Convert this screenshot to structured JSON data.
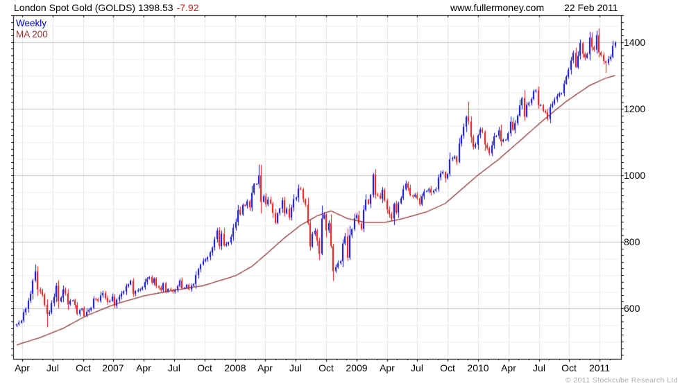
{
  "header": {
    "title": "London Spot Gold (GOLDS) 1398.53",
    "change": "-7.92",
    "website": "www.fullermoney.com",
    "date": "22 Feb 2011"
  },
  "legend": {
    "weekly": "Weekly",
    "ma": "MA 200"
  },
  "footer": {
    "copyright": "© 2011 Stockcube Research Ltd"
  },
  "colors": {
    "up": "#0a0ad8",
    "down": "#ee1111",
    "ma": "#8e3434",
    "change": "#bb2222",
    "legend_weekly": "#0000cc",
    "grid_minor": "#efefef",
    "grid_major": "#c0c0c0",
    "grid_vert": "#e2e2e2",
    "axis": "#000000",
    "copyright": "#aaaaaa"
  },
  "chart_data": {
    "type": "candlestick",
    "title": "London Spot Gold (GOLDS)",
    "frequency": "Weekly",
    "overlay": "MA 200",
    "last_price": 1398.53,
    "change": -7.92,
    "as_of": "22 Feb 2011",
    "x_axis": {
      "start": "2006-03-17",
      "end": "2011-02-22",
      "labels": [
        "Apr",
        "Jul",
        "Oct",
        "2007",
        "Apr",
        "Jul",
        "Oct",
        "2008",
        "Apr",
        "Jul",
        "Oct",
        "2009",
        "Apr",
        "Jul",
        "Oct",
        "2010",
        "Apr",
        "Jul",
        "Oct",
        "2011"
      ],
      "label_weeks": [
        2.4,
        15.45,
        28.5,
        41.55,
        54.6,
        67.65,
        80.7,
        93.75,
        106.8,
        119.85,
        132.9,
        145.95,
        159.0,
        172.05,
        185.1,
        198.15,
        211.2,
        224.25,
        237.3,
        250.35
      ],
      "weeks_total": 258
    },
    "y_axis": {
      "min": 448,
      "max": 1481,
      "tick_labels": [
        600,
        800,
        1000,
        1200,
        1400
      ],
      "grid_step": 50,
      "minor_tick_step": 20
    },
    "weekly_closes": [
      552,
      557,
      563,
      588,
      599,
      623,
      644,
      684,
      711,
      657,
      651,
      641,
      611,
      583,
      588,
      616,
      634,
      668,
      621,
      632,
      657,
      645,
      612,
      623,
      624,
      610,
      583,
      595,
      599,
      577,
      590,
      595,
      601,
      629,
      627,
      622,
      639,
      646,
      631,
      619,
      622,
      635,
      608,
      626,
      635,
      645,
      651,
      667,
      672,
      683,
      644,
      652,
      655,
      657,
      663,
      679,
      689,
      694,
      677,
      690,
      667,
      662,
      655,
      676,
      650,
      658,
      655,
      650,
      655,
      667,
      684,
      660,
      662,
      671,
      657,
      668,
      673,
      700,
      718,
      732,
      743,
      747,
      754,
      768,
      783,
      808,
      834,
      787,
      824,
      789,
      794,
      798,
      815,
      842,
      860,
      896,
      882,
      911,
      909,
      922,
      903,
      947,
      974,
      974,
      999,
      920,
      937,
      913,
      927,
      915,
      887,
      857,
      886,
      900,
      925,
      886,
      899,
      873,
      903,
      928,
      933,
      960,
      958,
      928,
      912,
      856,
      786,
      824,
      833,
      803,
      764,
      870,
      882,
      834,
      856,
      787,
      712,
      724,
      736,
      742,
      795,
      816,
      752,
      820,
      838,
      871,
      880,
      855,
      839,
      896,
      927,
      914,
      941,
      1002,
      942,
      939,
      930,
      956,
      924,
      897,
      883,
      870,
      914,
      888,
      916,
      931,
      958,
      975,
      962,
      940,
      936,
      941,
      931,
      913,
      937,
      951,
      953,
      959,
      948,
      954,
      958,
      993,
      1006,
      1010,
      991,
      1004,
      1048,
      1051,
      1056,
      1040,
      1095,
      1119,
      1146,
      1176,
      1162,
      1115,
      1085,
      1092,
      1120,
      1138,
      1130,
      1092,
      1081,
      1066,
      1090,
      1117,
      1118,
      1135,
      1102,
      1107,
      1107,
      1126,
      1161,
      1136,
      1157,
      1179,
      1210,
      1232,
      1176,
      1212,
      1217,
      1229,
      1253,
      1255,
      1211,
      1211,
      1193,
      1189,
      1169,
      1205,
      1215,
      1228,
      1238,
      1246,
      1246,
      1275,
      1296,
      1317,
      1345,
      1368,
      1325,
      1359,
      1397,
      1365,
      1353,
      1364,
      1414,
      1385,
      1378,
      1421,
      1369,
      1361,
      1343,
      1337,
      1349,
      1356,
      1389,
      1398.53
    ],
    "wick_overrides": {
      "8": {
        "high": 732
      },
      "13": {
        "low": 543
      },
      "104": {
        "high": 1032
      },
      "136": {
        "low": 682
      },
      "153": {
        "high": 1007
      },
      "194": {
        "high": 1221
      },
      "246": {
        "high": 1431
      },
      "253": {
        "low": 1308
      }
    },
    "ma200": {
      "weeks": [
        0,
        10,
        20,
        30,
        42,
        55,
        68,
        80,
        94,
        101,
        108,
        115,
        122,
        129,
        135,
        142,
        150,
        158,
        166,
        176,
        184,
        198,
        207,
        216,
        226,
        236,
        246,
        253,
        257
      ],
      "values": [
        490,
        512,
        540,
        578,
        612,
        638,
        655,
        668,
        698,
        726,
        768,
        812,
        850,
        878,
        893,
        870,
        858,
        858,
        870,
        890,
        915,
        1000,
        1048,
        1103,
        1165,
        1222,
        1270,
        1292,
        1300
      ]
    }
  }
}
